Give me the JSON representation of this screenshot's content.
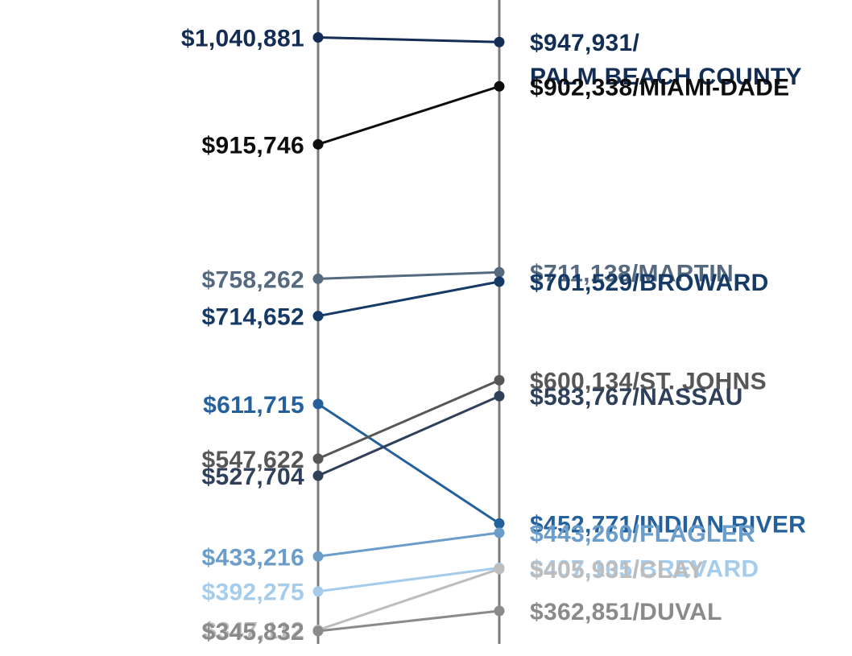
{
  "chart_data": {
    "type": "slope",
    "title": "",
    "value_prefix": "$",
    "series": [
      {
        "name": "PALM BEACH COUNTY",
        "start": 1040881,
        "end": 947931,
        "start_label": "$1,040,881",
        "end_label": "$947,931/",
        "end_label_line2": "PALM BEACH COUNTY",
        "color": "#142d55"
      },
      {
        "name": "MIAMI-DADE",
        "start": 915746,
        "end": 902338,
        "start_label": "$915,746",
        "end_label": "$902,338/MIAMI-DADE",
        "color": "#0d0d0d"
      },
      {
        "name": "MARTIN",
        "start": 758262,
        "end": 711138,
        "start_label": "$758,262",
        "end_label": "$711,138/MARTIN",
        "color": "#55697f"
      },
      {
        "name": "BROWARD",
        "start": 714652,
        "end": 701529,
        "start_label": "$714,652",
        "end_label": "$701,529/BROWARD",
        "color": "#163a66"
      },
      {
        "name": "INDIAN RIVER",
        "start": 611715,
        "end": 452771,
        "start_label": "$611,715",
        "end_label": "$452,771/INDIAN RIVER",
        "color": "#24609b"
      },
      {
        "name": "ST. JOHNS",
        "start": 547622,
        "end": 600134,
        "start_label": "$547,622",
        "end_label": "$600,134/ST. JOHNS",
        "color": "#575757"
      },
      {
        "name": "NASSAU",
        "start": 527704,
        "end": 583767,
        "start_label": "$527,704",
        "end_label": "$583,767/NASSAU",
        "color": "#2e405a"
      },
      {
        "name": "FLAGLER",
        "start": 433216,
        "end": 443260,
        "start_label": "$433,216",
        "end_label": "$443,260/FLAGLER",
        "color": "#6b9dcb"
      },
      {
        "name": "BREVARD",
        "start": 392275,
        "end": 407105,
        "start_label": "$392,275",
        "end_label": "$407,105/BREVARD",
        "color": "#a6cceb"
      },
      {
        "name": "CLAY",
        "start": 347112,
        "end": 405931,
        "start_label": "$347,112",
        "end_label": "$405,931/CLAY",
        "color": "#bdbdbd"
      },
      {
        "name": "DUVAL",
        "start": 345832,
        "end": 362851,
        "start_label": "$345,832",
        "end_label": "$362,851/DUVAL",
        "color": "#8a8a8a"
      }
    ]
  }
}
